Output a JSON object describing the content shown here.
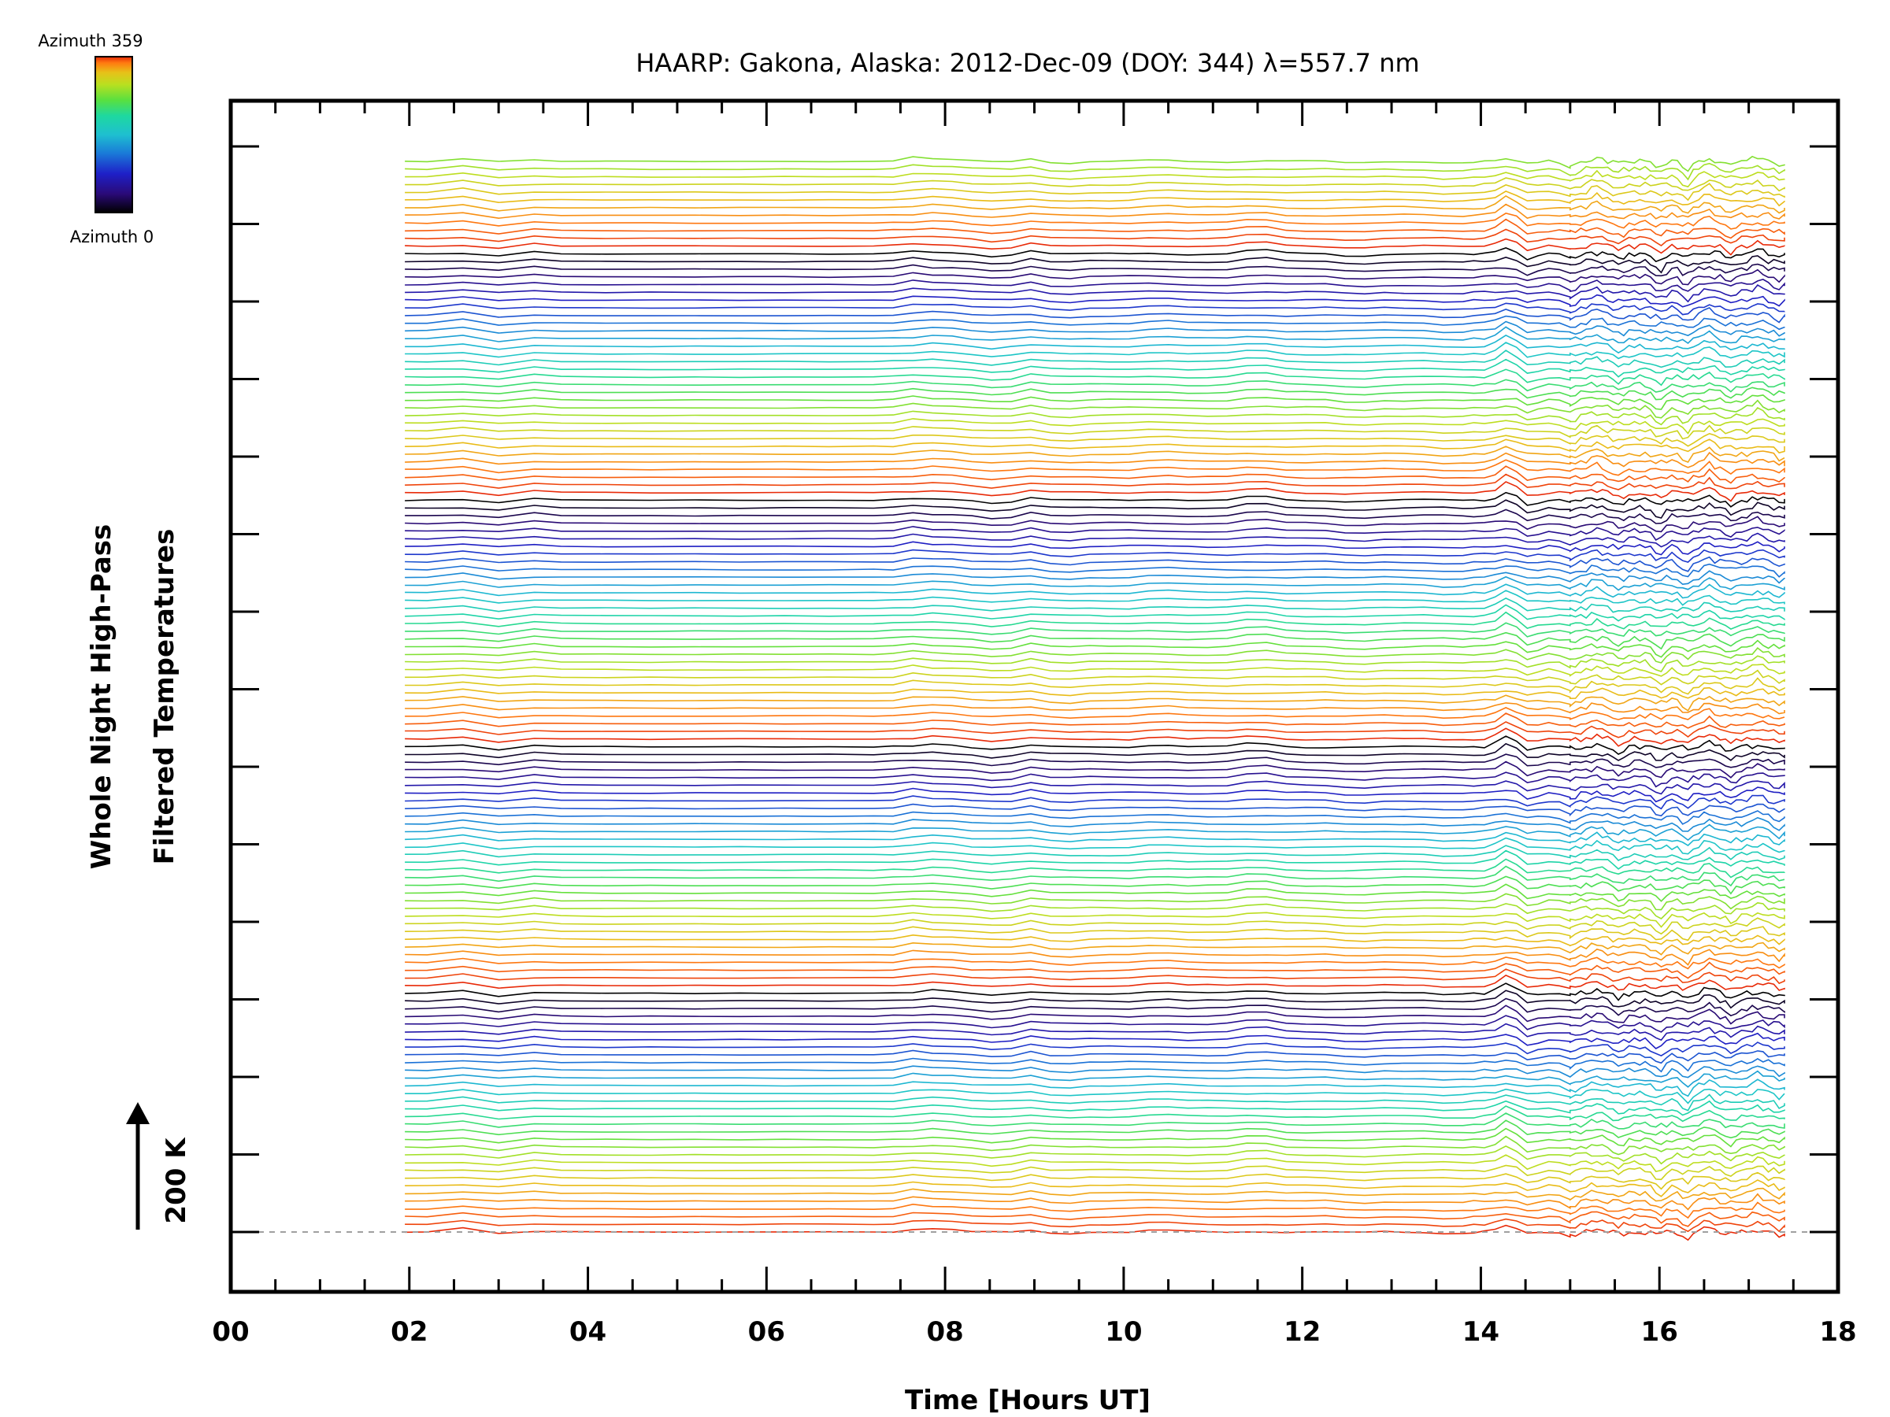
{
  "chart_data": {
    "type": "line",
    "title": "HAARP: Gakona,  Alaska: 2012-Dec-09 (DOY: 344) λ=557.7 nm",
    "xlabel": "Time [Hours UT]",
    "ylabel_line1": "Whole Night High-Pass",
    "ylabel_line2": "Filtered Temperatures",
    "xlim": [
      0,
      18
    ],
    "x_ticks": [
      "00",
      "02",
      "04",
      "06",
      "08",
      "10",
      "12",
      "14",
      "16",
      "18"
    ],
    "x_start": 1.95,
    "x_end": 17.4,
    "series_count": 140,
    "azimuth_colorbar": {
      "top_label": "Azimuth 359",
      "bottom_label": "Azimuth 0",
      "min": 0,
      "max": 359
    },
    "scale_bar_label": "200 K",
    "grid": false,
    "legend": "colorbar top-left",
    "palette": [
      "#000000",
      "#2a0a78",
      "#1e20c8",
      "#1a7ad8",
      "#1ec0d0",
      "#1ed8a0",
      "#58e040",
      "#b8e020",
      "#e8c018",
      "#ff7a10",
      "#e82a08"
    ],
    "cycle_length": 32,
    "events": [
      {
        "t": 2.6,
        "amp": 0.55,
        "w": 0.18
      },
      {
        "t": 3.0,
        "amp": -0.45,
        "w": 0.2
      },
      {
        "t": 3.4,
        "amp": 0.4,
        "w": 0.2
      },
      {
        "t": 7.6,
        "amp": 0.7,
        "w": 0.14
      },
      {
        "t": 7.95,
        "amp": 0.85,
        "w": 0.16
      },
      {
        "t": 8.6,
        "amp": -0.5,
        "w": 0.14
      },
      {
        "t": 9.0,
        "amp": 0.6,
        "w": 0.14
      },
      {
        "t": 9.3,
        "amp": -0.4,
        "w": 0.14
      },
      {
        "t": 10.4,
        "amp": 0.35,
        "w": 0.2
      },
      {
        "t": 11.5,
        "amp": 0.65,
        "w": 0.2
      },
      {
        "t": 12.6,
        "amp": -0.35,
        "w": 0.2
      },
      {
        "t": 13.7,
        "amp": -0.3,
        "w": 0.18
      },
      {
        "t": 14.3,
        "amp": 1.6,
        "w": 0.13
      },
      {
        "t": 14.55,
        "amp": -0.9,
        "w": 0.1
      },
      {
        "t": 15.0,
        "amp": -0.8,
        "w": 0.1
      },
      {
        "t": 15.3,
        "amp": 0.7,
        "w": 0.08
      },
      {
        "t": 15.55,
        "amp": -0.8,
        "w": 0.08
      },
      {
        "t": 16.0,
        "amp": -1.3,
        "w": 0.08
      },
      {
        "t": 16.3,
        "amp": -1.2,
        "w": 0.07
      },
      {
        "t": 16.55,
        "amp": 1.0,
        "w": 0.07
      },
      {
        "t": 16.8,
        "amp": -0.9,
        "w": 0.07
      },
      {
        "t": 17.1,
        "amp": 0.8,
        "w": 0.07
      },
      {
        "t": 17.35,
        "amp": -0.7,
        "w": 0.06
      }
    ]
  }
}
